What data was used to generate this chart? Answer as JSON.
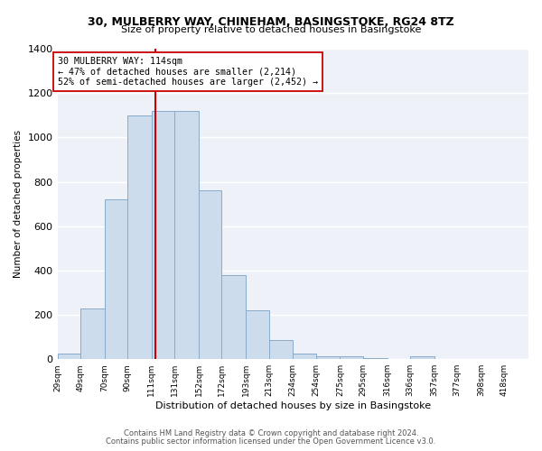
{
  "title": "30, MULBERRY WAY, CHINEHAM, BASINGSTOKE, RG24 8TZ",
  "subtitle": "Size of property relative to detached houses in Basingstoke",
  "xlabel": "Distribution of detached houses by size in Basingstoke",
  "ylabel": "Number of detached properties",
  "footer1": "Contains HM Land Registry data © Crown copyright and database right 2024.",
  "footer2": "Contains public sector information licensed under the Open Government Licence v3.0.",
  "annotation_line1": "30 MULBERRY WAY: 114sqm",
  "annotation_line2": "← 47% of detached houses are smaller (2,214)",
  "annotation_line3": "52% of semi-detached houses are larger (2,452) →",
  "red_line_x": 114,
  "bar_color": "#ccdcec",
  "bar_edge_color": "#88aac8",
  "red_line_color": "#cc0000",
  "background_color": "#eef2f8",
  "ylim": [
    0,
    1400
  ],
  "yticks": [
    0,
    200,
    400,
    600,
    800,
    1000,
    1200,
    1400
  ],
  "bin_edges": [
    29,
    49,
    70,
    90,
    111,
    131,
    152,
    172,
    193,
    213,
    234,
    254,
    275,
    295,
    316,
    336,
    357,
    377,
    398,
    418,
    439
  ],
  "bar_heights": [
    25,
    230,
    720,
    1100,
    1120,
    1120,
    760,
    380,
    220,
    85,
    25,
    15,
    15,
    5,
    0,
    15,
    0,
    0,
    0,
    0
  ],
  "title_fontsize": 9,
  "subtitle_fontsize": 8.5
}
